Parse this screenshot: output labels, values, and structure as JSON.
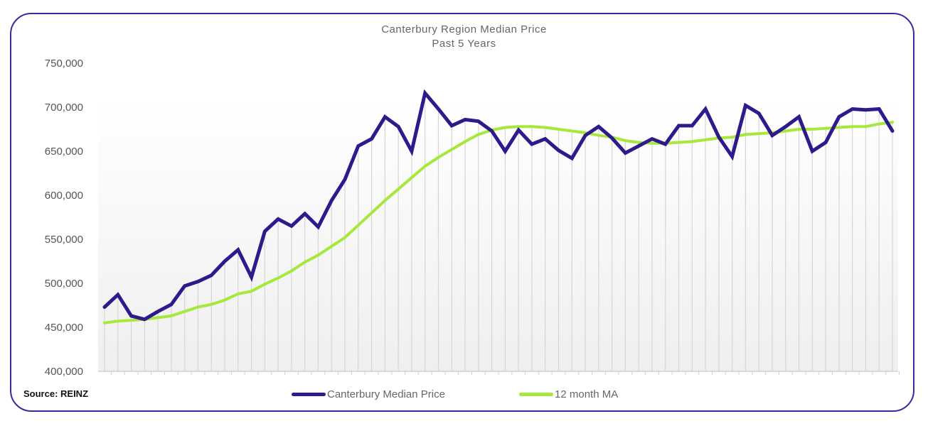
{
  "chart_data": {
    "type": "line",
    "title": "Canterbury Region Median Price",
    "subtitle": "Past 5 Years",
    "xlabel": "",
    "ylabel": "",
    "ylim": [
      400000,
      750000
    ],
    "yticks": [
      400000,
      450000,
      500000,
      550000,
      600000,
      650000,
      700000,
      750000
    ],
    "ytick_labels": [
      "400,000",
      "450,000",
      "500,000",
      "550,000",
      "600,000",
      "650,000",
      "700,000",
      "750,000"
    ],
    "x": [
      1,
      2,
      3,
      4,
      5,
      6,
      7,
      8,
      9,
      10,
      11,
      12,
      13,
      14,
      15,
      16,
      17,
      18,
      19,
      20,
      21,
      22,
      23,
      24,
      25,
      26,
      27,
      28,
      29,
      30,
      31,
      32,
      33,
      34,
      35,
      36,
      37,
      38,
      39,
      40,
      41,
      42,
      43,
      44,
      45,
      46,
      47,
      48,
      49,
      50,
      51,
      52,
      53,
      54,
      55,
      56,
      57,
      58,
      59,
      60
    ],
    "grid": "vertical",
    "legend": "bottom-center",
    "series": [
      {
        "name": "Canterbury Median Price",
        "color": "#2e1a8a",
        "values": [
          473000,
          487000,
          463000,
          459000,
          468000,
          476000,
          497000,
          502000,
          509000,
          525000,
          538000,
          507000,
          559000,
          573000,
          565000,
          579000,
          564000,
          594000,
          618000,
          656000,
          664000,
          689000,
          678000,
          650000,
          716000,
          698000,
          679000,
          686000,
          684000,
          673000,
          650000,
          674000,
          658000,
          664000,
          651000,
          642000,
          668000,
          678000,
          665000,
          648000,
          656000,
          664000,
          658000,
          679000,
          679000,
          698000,
          666000,
          644000,
          702000,
          693000,
          668000,
          678000,
          689000,
          650000,
          660000,
          689000,
          698000,
          697000,
          698000,
          673000
        ]
      },
      {
        "name": "12 month MA",
        "color": "#a6e83c",
        "values": [
          455000,
          457000,
          458000,
          459000,
          461000,
          463000,
          468000,
          473000,
          476000,
          481000,
          488000,
          491000,
          499000,
          506000,
          514000,
          524000,
          532000,
          542000,
          552000,
          566000,
          580000,
          594000,
          607000,
          620000,
          633000,
          643000,
          652000,
          661000,
          669000,
          674000,
          677000,
          678000,
          678000,
          677000,
          675000,
          673000,
          671000,
          668000,
          666000,
          662000,
          660000,
          659000,
          659000,
          660000,
          661000,
          663000,
          665000,
          666000,
          669000,
          670000,
          671000,
          673000,
          675000,
          675000,
          676000,
          677000,
          678000,
          678000,
          681000,
          683000
        ]
      }
    ],
    "source": "Source: REINZ"
  }
}
